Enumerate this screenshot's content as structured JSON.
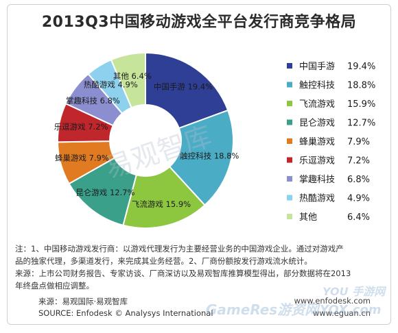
{
  "title": "2013Q3中国移动游戏全平台发行商竞争格局",
  "chart_data": {
    "type": "pie",
    "variant": "donut",
    "title": "2013Q3中国移动游戏全平台发行商竞争格局",
    "legend_position": "right",
    "slices": [
      {
        "label": "中国手游",
        "value": 19.4,
        "display": "19.4%",
        "color": "#2f3f95"
      },
      {
        "label": "触控科技",
        "value": 18.8,
        "display": "18.8%",
        "color": "#4bacc6"
      },
      {
        "label": "飞流游戏",
        "value": 15.9,
        "display": "15.9%",
        "color": "#8dc63f"
      },
      {
        "label": "昆仑游戏",
        "value": 12.7,
        "display": "12.7%",
        "color": "#3aa08a"
      },
      {
        "label": "蜂巢游戏",
        "value": 7.9,
        "display": "7.9%",
        "color": "#e07b22"
      },
      {
        "label": "乐逗游戏",
        "value": 7.2,
        "display": "7.2%",
        "color": "#c0272d"
      },
      {
        "label": "掌趣科技",
        "value": 6.8,
        "display": "6.8%",
        "color": "#8b8fcf"
      },
      {
        "label": "热酷游戏",
        "value": 4.9,
        "display": "4.9%",
        "color": "#8ed1ee"
      },
      {
        "label": "其他",
        "value": 6.4,
        "display": "6.4%",
        "color": "#c6e59a"
      }
    ]
  },
  "notes": {
    "line1": "注：1、中国移动游戏发行商：以游戏代理发行为主要经营业务的中国游戏企业。通过对游戏产",
    "line2": "品的独家代理，多渠道发行，来完成其业务经营。2、厂商份额按发行游戏流水统计。",
    "line3": "来源：上市公司财务报告、专家访谈、厂商深访以及易观智库推算模型得出，部分数据将在2013",
    "line4": "年终盘点做相应调整。"
  },
  "source": {
    "cn": "来源：易观国际·易观智库",
    "en": "SOURCE: Enfodesk © Analysys International"
  },
  "sites": {
    "enfodesk": "www.enfodesk.com",
    "eguan": "www.eguan.cn"
  },
  "watermarks": {
    "center": "易观智库",
    "gameres": "GameRes游资网",
    "you_logo": "YOU 手游网",
    "fox_logo": "YOX.com"
  }
}
